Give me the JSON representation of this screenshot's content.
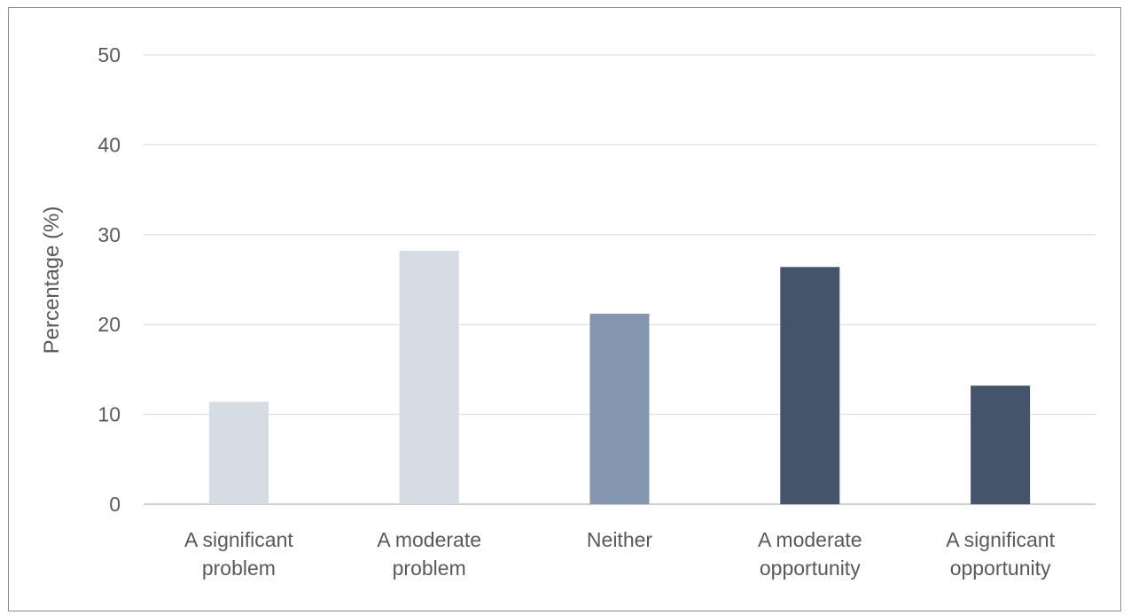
{
  "chart_data": {
    "type": "bar",
    "categories": [
      [
        "A significant",
        "problem"
      ],
      [
        "A moderate",
        "problem"
      ],
      [
        "Neither"
      ],
      [
        "A moderate",
        "opportunity"
      ],
      [
        "A significant",
        "opportunity"
      ]
    ],
    "values": [
      11.4,
      28.2,
      21.2,
      26.4,
      13.2
    ],
    "colors": [
      "#d6dce4",
      "#d6dce4",
      "#8496b0",
      "#44546a",
      "#44546a"
    ],
    "title": "",
    "xlabel": "",
    "ylabel": "Percentage (%)",
    "ylim": [
      0,
      50
    ],
    "yticks": [
      0,
      10,
      20,
      30,
      40,
      50
    ],
    "grid": true,
    "legend": "none"
  }
}
